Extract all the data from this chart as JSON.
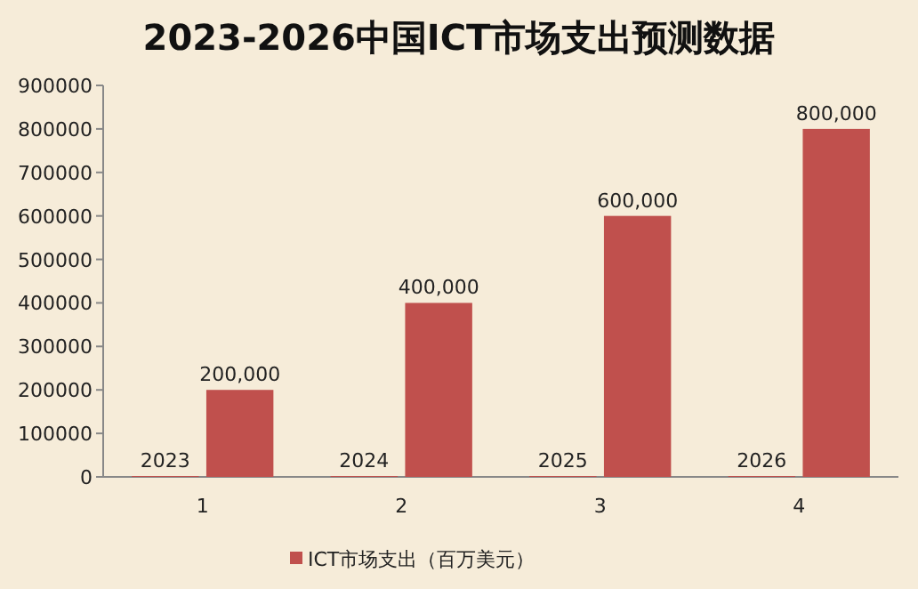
{
  "chart_data": {
    "type": "bar",
    "title": "2023-2026中国ICT市场支出预测数据",
    "categories": [
      "1",
      "2",
      "3",
      "4"
    ],
    "series": [
      {
        "color": "#c0504d",
        "values": [
          2023,
          2024,
          2025,
          2026
        ],
        "value_labels": [
          "2023",
          "2024",
          "2025",
          "2026"
        ]
      },
      {
        "name": "ICT市场支出（百万美元）",
        "color": "#c0504d",
        "values": [
          200000,
          400000,
          600000,
          800000
        ],
        "value_labels": [
          "200,000",
          "400,000",
          "600,000",
          "800,000"
        ]
      }
    ],
    "ylim": [
      0,
      900000
    ],
    "yticks": [
      0,
      100000,
      200000,
      300000,
      400000,
      500000,
      600000,
      700000,
      800000,
      900000
    ],
    "legend": "bottom",
    "grid": false
  }
}
